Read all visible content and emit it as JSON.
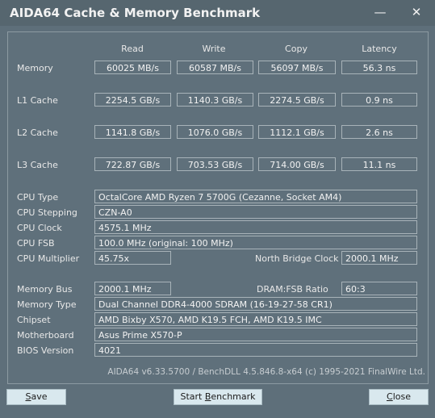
{
  "window": {
    "title": "AIDA64 Cache & Memory Benchmark",
    "minimize_icon": "minimize-icon",
    "close_icon": "close-icon"
  },
  "columns": {
    "read": "Read",
    "write": "Write",
    "copy": "Copy",
    "latency": "Latency"
  },
  "rows": [
    {
      "label": "Memory",
      "read": "60025 MB/s",
      "write": "60587 MB/s",
      "copy": "56097 MB/s",
      "latency": "56.3 ns"
    },
    {
      "label": "L1 Cache",
      "read": "2254.5 GB/s",
      "write": "1140.3 GB/s",
      "copy": "2274.5 GB/s",
      "latency": "0.9 ns"
    },
    {
      "label": "L2 Cache",
      "read": "1141.8 GB/s",
      "write": "1076.0 GB/s",
      "copy": "1112.1 GB/s",
      "latency": "2.6 ns"
    },
    {
      "label": "L3 Cache",
      "read": "722.87 GB/s",
      "write": "703.53 GB/s",
      "copy": "714.00 GB/s",
      "latency": "11.1 ns"
    }
  ],
  "cpu": {
    "type_label": "CPU Type",
    "type_value": "OctalCore AMD Ryzen 7 5700G  (Cezanne, Socket AM4)",
    "stepping_label": "CPU Stepping",
    "stepping_value": "CZN-A0",
    "clock_label": "CPU Clock",
    "clock_value": "4575.1 MHz",
    "fsb_label": "CPU FSB",
    "fsb_value": "100.0 MHz  (original: 100 MHz)",
    "multiplier_label": "CPU Multiplier",
    "multiplier_value": "45.75x",
    "nb_clock_label": "North Bridge Clock",
    "nb_clock_value": "2000.1 MHz"
  },
  "memory": {
    "bus_label": "Memory Bus",
    "bus_value": "2000.1 MHz",
    "ratio_label": "DRAM:FSB Ratio",
    "ratio_value": "60:3",
    "type_label": "Memory Type",
    "type_value": "Dual Channel DDR4-4000 SDRAM  (16-19-27-58 CR1)",
    "chipset_label": "Chipset",
    "chipset_value": "AMD Bixby X570, AMD K19.5 FCH, AMD K19.5 IMC",
    "motherboard_label": "Motherboard",
    "motherboard_value": "Asus Prime X570-P",
    "bios_label": "BIOS Version",
    "bios_value": "4021"
  },
  "footer": "AIDA64 v6.33.5700 / BenchDLL 4.5.846.8-x64  (c) 1995-2021 FinalWire Ltd.",
  "buttons": {
    "save_u": "S",
    "save_rest": "ave",
    "start_pre": "Start ",
    "start_u": "B",
    "start_rest": "enchmark",
    "close_u": "C",
    "close_rest": "lose"
  }
}
